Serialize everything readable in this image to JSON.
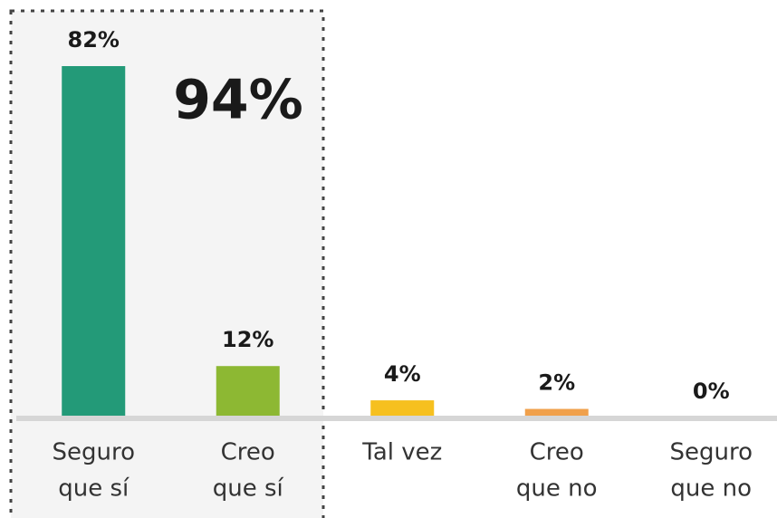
{
  "chart_data": {
    "type": "bar",
    "categories": [
      [
        "Seguro",
        "que sí"
      ],
      [
        "Creo",
        "que sí"
      ],
      [
        "Tal vez"
      ],
      [
        "Creo",
        "que no"
      ],
      [
        "Seguro",
        "que no"
      ]
    ],
    "values": [
      82,
      12,
      4,
      2,
      0
    ],
    "value_labels": [
      "82%",
      "12%",
      "4%",
      "2%",
      "0%"
    ],
    "colors": [
      "#239a78",
      "#8db833",
      "#f6c01f",
      "#f0a04b",
      "#e8674a"
    ],
    "annotation": "94%"
  }
}
